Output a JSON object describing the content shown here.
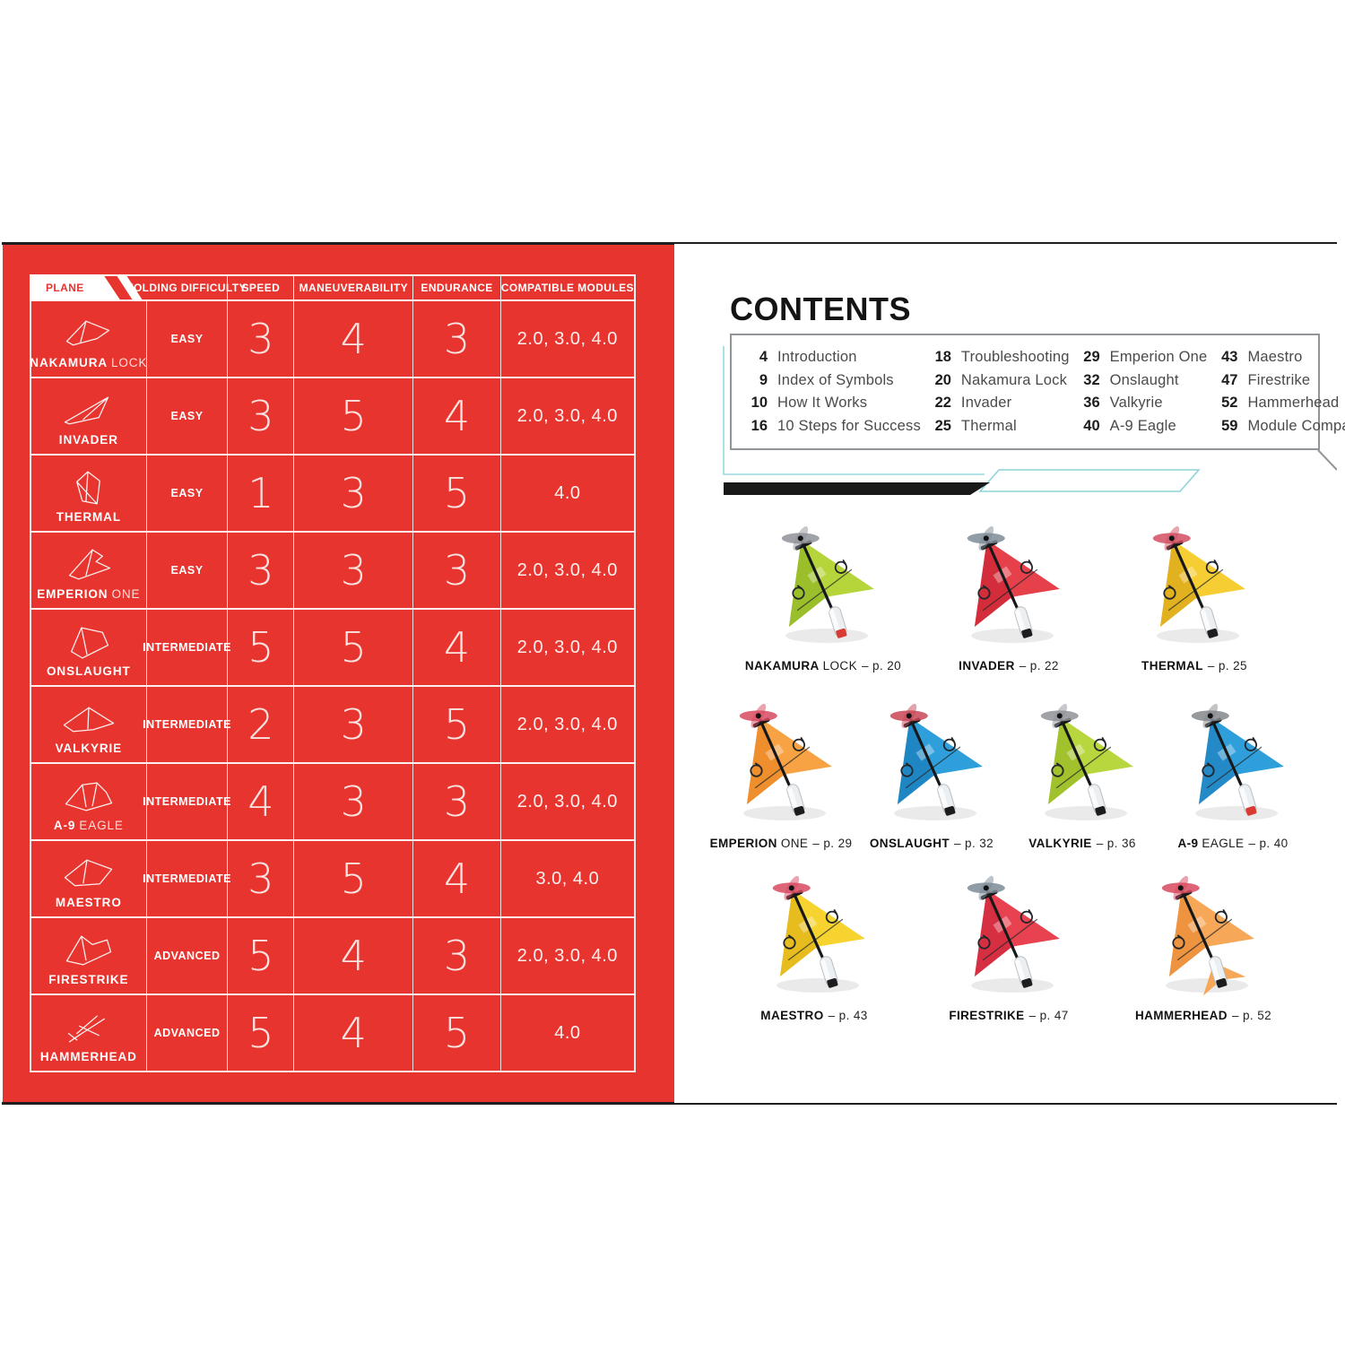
{
  "left_page": {
    "page_color": "#e8342f",
    "table": {
      "header": [
        "PLANE",
        "FOLDING DIFFICULTY",
        "SPEED",
        "MANEUVERABILITY",
        "ENDURANCE",
        "COMPATIBLE MODULES"
      ],
      "rows": [
        {
          "icon": "nakamura-lock-sketch-icon",
          "name_bold": "NAKAMURA",
          "name_light": "LOCK",
          "difficulty": "EASY",
          "speed": "3",
          "maneuverability": "4",
          "endurance": "3",
          "modules": "2.0, 3.0, 4.0"
        },
        {
          "icon": "invader-sketch-icon",
          "name_bold": "INVADER",
          "name_light": "",
          "difficulty": "EASY",
          "speed": "3",
          "maneuverability": "5",
          "endurance": "4",
          "modules": "2.0, 3.0, 4.0"
        },
        {
          "icon": "thermal-sketch-icon",
          "name_bold": "THERMAL",
          "name_light": "",
          "difficulty": "EASY",
          "speed": "1",
          "maneuverability": "3",
          "endurance": "5",
          "modules": "4.0"
        },
        {
          "icon": "emperion-one-sketch-icon",
          "name_bold": "EMPERION",
          "name_light": "ONE",
          "difficulty": "EASY",
          "speed": "3",
          "maneuverability": "3",
          "endurance": "3",
          "modules": "2.0, 3.0, 4.0"
        },
        {
          "icon": "onslaught-sketch-icon",
          "name_bold": "ONSLAUGHT",
          "name_light": "",
          "difficulty": "INTERMEDIATE",
          "speed": "5",
          "maneuverability": "5",
          "endurance": "4",
          "modules": "2.0, 3.0, 4.0"
        },
        {
          "icon": "valkyrie-sketch-icon",
          "name_bold": "VALKYRIE",
          "name_light": "",
          "difficulty": "INTERMEDIATE",
          "speed": "2",
          "maneuverability": "3",
          "endurance": "5",
          "modules": "2.0, 3.0, 4.0"
        },
        {
          "icon": "a9-eagle-sketch-icon",
          "name_bold": "A-9",
          "name_light": "EAGLE",
          "difficulty": "INTERMEDIATE",
          "speed": "4",
          "maneuverability": "3",
          "endurance": "3",
          "modules": "2.0, 3.0, 4.0"
        },
        {
          "icon": "maestro-sketch-icon",
          "name_bold": "MAESTRO",
          "name_light": "",
          "difficulty": "INTERMEDIATE",
          "speed": "3",
          "maneuverability": "5",
          "endurance": "4",
          "modules": "3.0, 4.0"
        },
        {
          "icon": "firestrike-sketch-icon",
          "name_bold": "FIRESTRIKE",
          "name_light": "",
          "difficulty": "ADVANCED",
          "speed": "5",
          "maneuverability": "4",
          "endurance": "3",
          "modules": "2.0, 3.0, 4.0"
        },
        {
          "icon": "hammerhead-sketch-icon",
          "name_bold": "HAMMERHEAD",
          "name_light": "",
          "difficulty": "ADVANCED",
          "speed": "5",
          "maneuverability": "4",
          "endurance": "5",
          "modules": "4.0"
        }
      ]
    }
  },
  "right_page": {
    "title": "CONTENTS",
    "accent_colors": {
      "cyan_line": "#97d9dd",
      "black_bar": "#191919",
      "box_border": "#90959a"
    },
    "contents": {
      "columns": [
        {
          "items": [
            {
              "page": "4",
              "title": "Introduction"
            },
            {
              "page": "9",
              "title": "Index of Symbols"
            },
            {
              "page": "10",
              "title": "How It Works"
            },
            {
              "page": "16",
              "title": "10 Steps for Success"
            }
          ]
        },
        {
          "items": [
            {
              "page": "18",
              "title": "Troubleshooting"
            },
            {
              "page": "20",
              "title": "Nakamura Lock"
            },
            {
              "page": "22",
              "title": "Invader"
            },
            {
              "page": "25",
              "title": "Thermal"
            }
          ]
        },
        {
          "items": [
            {
              "page": "29",
              "title": "Emperion One"
            },
            {
              "page": "32",
              "title": "Onslaught"
            },
            {
              "page": "36",
              "title": "Valkyrie"
            },
            {
              "page": "40",
              "title": "A-9 Eagle"
            }
          ]
        },
        {
          "items": [
            {
              "page": "43",
              "title": "Maestro"
            },
            {
              "page": "47",
              "title": "Firestrike"
            },
            {
              "page": "52",
              "title": "Hammerhead"
            },
            {
              "page": "59",
              "title": "Module Comparison"
            }
          ]
        }
      ]
    },
    "plane_rows": [
      [
        {
          "name_bold": "NAKAMURA",
          "name_light": "LOCK",
          "page_label": "– p. 20",
          "color": "#b6d53b",
          "color_dark": "#9abf2b",
          "prop_color": "#8e9297",
          "battery_tip": "#d93a31"
        },
        {
          "name_bold": "INVADER",
          "name_light": "",
          "page_label": "– p. 22",
          "color": "#e6404a",
          "color_dark": "#d32c3a",
          "prop_color": "#7d8b96",
          "battery_tip": "#1d1d1f"
        },
        {
          "name_bold": "THERMAL",
          "name_light": "",
          "page_label": "– p. 25",
          "color": "#f6cd32",
          "color_dark": "#e2b120",
          "prop_color": "#d24e60",
          "battery_tip": "#1d1d1f"
        }
      ],
      [
        {
          "name_bold": "EMPERION",
          "name_light": "ONE",
          "page_label": "– p. 29",
          "color": "#f7a243",
          "color_dark": "#ee8e2c",
          "prop_color": "#d8495f",
          "battery_tip": "#1d1d1f"
        },
        {
          "name_bold": "ONSLAUGHT",
          "name_light": "",
          "page_label": "– p. 32",
          "color": "#2f9fdb",
          "color_dark": "#1f86c4",
          "prop_color": "#c84556",
          "battery_tip": "#1d1d1f"
        },
        {
          "name_bold": "VALKYRIE",
          "name_light": "",
          "page_label": "– p. 36",
          "color": "#b8d63e",
          "color_dark": "#a2c22d",
          "prop_color": "#8e9297",
          "battery_tip": "#1d1d1f"
        },
        {
          "name_bold": "A-9",
          "name_light": "EAGLE",
          "page_label": "– p. 40",
          "color": "#2f9fdb",
          "color_dark": "#2489c7",
          "prop_color": "#85888c",
          "battery_tip": "#d93a31"
        }
      ],
      [
        {
          "name_bold": "MAESTRO",
          "name_light": "",
          "page_label": "– p. 43",
          "color": "#f6d32e",
          "color_dark": "#e6bc1e",
          "prop_color": "#d8495f",
          "battery_tip": "#1d1d1f"
        },
        {
          "name_bold": "FIRESTRIKE",
          "name_light": "",
          "page_label": "– p. 47",
          "color": "#e84150",
          "color_dark": "#d62f41",
          "prop_color": "#7d8b96",
          "battery_tip": "#1d1d1f"
        },
        {
          "name_bold": "HAMMERHEAD",
          "name_light": "",
          "page_label": "– p. 52",
          "color": "#f7a758",
          "color_dark": "#ee9440",
          "prop_color": "#d8495f",
          "battery_tip": "#1d1d1f",
          "variant": "tailed"
        }
      ]
    ]
  }
}
